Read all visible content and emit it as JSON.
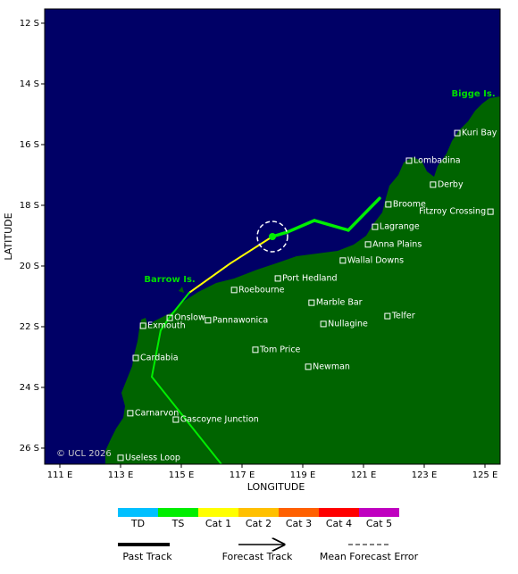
{
  "chart_data": {
    "type": "track-map",
    "xlabel": "LONGITUDE",
    "ylabel": "LATITUDE",
    "copyright": "© UCL 2026",
    "xlim": [
      110.5,
      125.5
    ],
    "ylim": [
      -26.53,
      -11.53
    ],
    "xticks": [
      {
        "value": 111,
        "label": "111 E"
      },
      {
        "value": 113,
        "label": "113 E"
      },
      {
        "value": 115,
        "label": "115 E"
      },
      {
        "value": 117,
        "label": "117 E"
      },
      {
        "value": 119,
        "label": "119 E"
      },
      {
        "value": 121,
        "label": "121 E"
      },
      {
        "value": 123,
        "label": "123 E"
      },
      {
        "value": 125,
        "label": "125 E"
      }
    ],
    "yticks": [
      {
        "value": -12,
        "label": "12 S"
      },
      {
        "value": -14,
        "label": "14 S"
      },
      {
        "value": -16,
        "label": "16 S"
      },
      {
        "value": -18,
        "label": "18 S"
      },
      {
        "value": -20,
        "label": "20 S"
      },
      {
        "value": -22,
        "label": "22 S"
      },
      {
        "value": -24,
        "label": "24 S"
      },
      {
        "value": -26,
        "label": "26 S"
      }
    ],
    "categories": [
      {
        "name": "TD",
        "color": "#00c0ff"
      },
      {
        "name": "TS",
        "color": "#00ee00"
      },
      {
        "name": "Cat 1",
        "color": "#ffff00"
      },
      {
        "name": "Cat 2",
        "color": "#ffc000"
      },
      {
        "name": "Cat 3",
        "color": "#ff6000"
      },
      {
        "name": "Cat 4",
        "color": "#ff0000"
      },
      {
        "name": "Cat 5",
        "color": "#c000c0"
      }
    ],
    "past_track": [
      {
        "lon": 121.53,
        "lat": -17.77,
        "stage": 0
      },
      {
        "lon": 120.5,
        "lat": -18.82,
        "stage": 1
      },
      {
        "lon": 119.38,
        "lat": -18.5,
        "stage": 1
      },
      {
        "lon": 118.5,
        "lat": -18.88,
        "stage": 1
      },
      {
        "lon": 118.0,
        "lat": -19.03,
        "stage": 1
      }
    ],
    "forecast_track": [
      {
        "lon": 118.0,
        "lat": -19.03,
        "stage": 1
      },
      {
        "lon": 116.62,
        "lat": -19.91,
        "stage": 2
      },
      {
        "lon": 115.26,
        "lat": -20.88,
        "stage": 2
      },
      {
        "lon": 114.62,
        "lat": -21.68,
        "stage": 1
      },
      {
        "lon": 114.32,
        "lat": -22.12,
        "stage": 1
      },
      {
        "lon": 114.03,
        "lat": -23.65,
        "stage": 1
      },
      {
        "lon": 116.32,
        "lat": -26.53,
        "stage": 1
      }
    ],
    "error_radius_deg": 0.5,
    "legend": [
      "Past Track",
      "Forecast Track",
      "Mean Forecast Error"
    ],
    "islands": [
      {
        "name": "Bigge Is.",
        "lon": 124.62,
        "lat": -14.32
      },
      {
        "name": "Barrow Is.",
        "lon": 114.62,
        "lat": -20.44
      }
    ],
    "places": [
      {
        "name": "Kuri Bay",
        "lon": 124.09,
        "lat": -15.62
      },
      {
        "name": "Lombadina",
        "lon": 122.5,
        "lat": -16.53
      },
      {
        "name": "Derby",
        "lon": 123.29,
        "lat": -17.32
      },
      {
        "name": "Broome",
        "lon": 121.82,
        "lat": -17.97
      },
      {
        "name": "Fitzroy Crossing",
        "lon": 125.18,
        "lat": -18.21,
        "label_side": "left"
      },
      {
        "name": "Lagrange",
        "lon": 121.38,
        "lat": -18.71
      },
      {
        "name": "Anna Plains",
        "lon": 121.15,
        "lat": -19.29
      },
      {
        "name": "Wallal Downs",
        "lon": 120.32,
        "lat": -19.82
      },
      {
        "name": "Port Hedland",
        "lon": 118.18,
        "lat": -20.41
      },
      {
        "name": "Roebourne",
        "lon": 116.74,
        "lat": -20.79
      },
      {
        "name": "Marble Bar",
        "lon": 119.29,
        "lat": -21.21
      },
      {
        "name": "Onslow",
        "lon": 114.62,
        "lat": -21.71
      },
      {
        "name": "Exmouth",
        "lon": 113.74,
        "lat": -21.97
      },
      {
        "name": "Pannawonica",
        "lon": 115.88,
        "lat": -21.79
      },
      {
        "name": "Nullagine",
        "lon": 119.68,
        "lat": -21.91
      },
      {
        "name": "Telfer",
        "lon": 121.79,
        "lat": -21.65
      },
      {
        "name": "Tom Price",
        "lon": 117.44,
        "lat": -22.76
      },
      {
        "name": "Newman",
        "lon": 119.18,
        "lat": -23.32
      },
      {
        "name": "Cardabia",
        "lon": 113.5,
        "lat": -23.03
      },
      {
        "name": "Carnarvon",
        "lon": 113.32,
        "lat": -24.85
      },
      {
        "name": "Gascoyne Junction",
        "lon": 114.82,
        "lat": -25.06
      },
      {
        "name": "Useless Loop",
        "lon": 113.0,
        "lat": -26.32
      }
    ]
  }
}
